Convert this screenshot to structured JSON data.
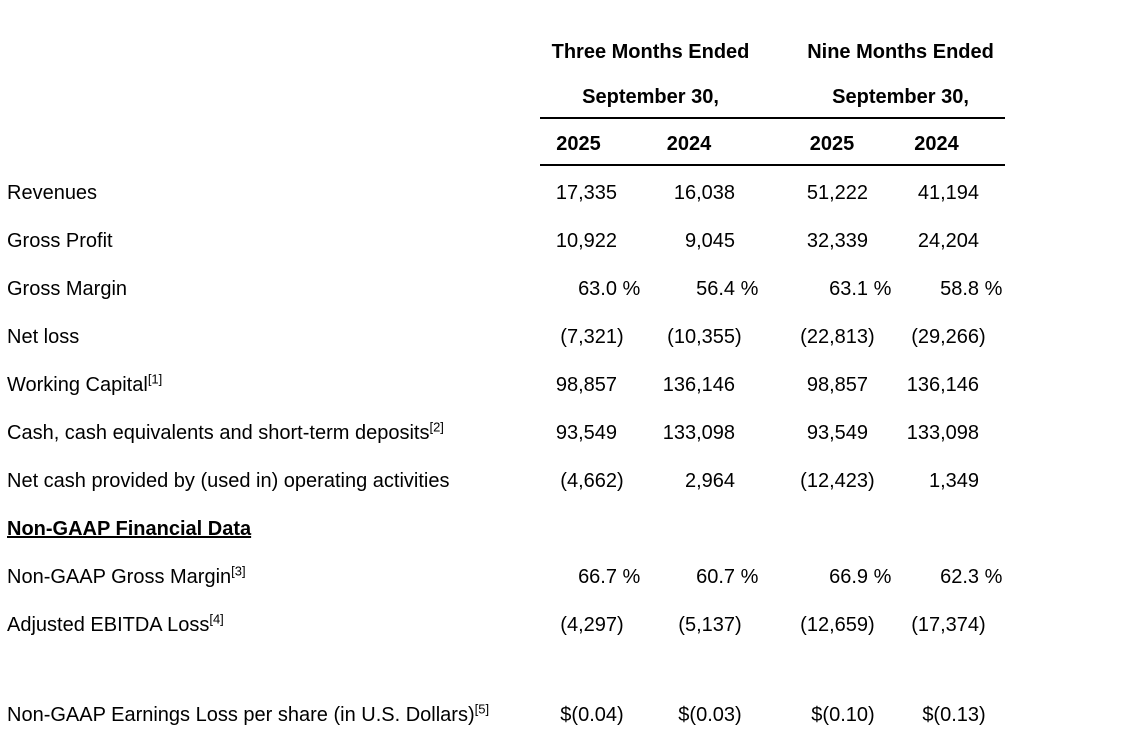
{
  "table": {
    "header": {
      "groups": [
        {
          "period": "Three Months Ended",
          "date": "September 30,"
        },
        {
          "period": "Nine Months Ended",
          "date": "September 30,"
        }
      ],
      "years": [
        "2025",
        "2024",
        "2025",
        "2024"
      ]
    },
    "rows": [
      {
        "type": "data",
        "label": "Revenues",
        "sup": "",
        "values": [
          "17,335",
          "16,038",
          "51,222",
          "41,194"
        ]
      },
      {
        "type": "data",
        "label": "Gross Profit",
        "sup": "",
        "values": [
          "10,922",
          "9,045",
          "32,339",
          "24,204"
        ]
      },
      {
        "type": "data",
        "label": "Gross Margin",
        "sup": "",
        "values": [
          "63.0 %",
          "56.4 %",
          "63.1 %",
          "58.8 %"
        ]
      },
      {
        "type": "data",
        "label": "Net loss",
        "sup": "",
        "values": [
          "(7,321)",
          "(10,355)",
          "(22,813)",
          "(29,266)"
        ]
      },
      {
        "type": "data",
        "label": "Working Capital",
        "sup": "[1]",
        "values": [
          "98,857",
          "136,146",
          "98,857",
          "136,146"
        ]
      },
      {
        "type": "data",
        "label": "Cash, cash equivalents and short-term deposits",
        "sup": "[2]",
        "values": [
          "93,549",
          "133,098",
          "93,549",
          "133,098"
        ]
      },
      {
        "type": "data",
        "label": "Net cash provided by (used in) operating activities",
        "sup": "",
        "values": [
          "(4,662)",
          "2,964",
          "(12,423)",
          "1,349"
        ]
      },
      {
        "type": "section",
        "label": "Non-GAAP Financial Data",
        "sup": "",
        "values": [
          "",
          "",
          "",
          ""
        ]
      },
      {
        "type": "data",
        "label": "Non-GAAP Gross Margin",
        "sup": "[3]",
        "values": [
          "66.7 %",
          "60.7 %",
          "66.9 %",
          "62.3 %"
        ]
      },
      {
        "type": "data",
        "label": "Adjusted EBITDA Loss",
        "sup": "[4]",
        "values": [
          "(4,297)",
          "(5,137)",
          "(12,659)",
          "(17,374)"
        ]
      },
      {
        "type": "spacer",
        "label": "",
        "sup": "",
        "values": [
          "",
          "",
          "",
          ""
        ]
      },
      {
        "type": "data",
        "label": "Non-GAAP Earnings Loss per share (in U.S. Dollars)",
        "sup": "[5]",
        "values": [
          "$(0.04)",
          "$(0.03)",
          "$(0.10)",
          "$(0.13)"
        ]
      }
    ]
  }
}
